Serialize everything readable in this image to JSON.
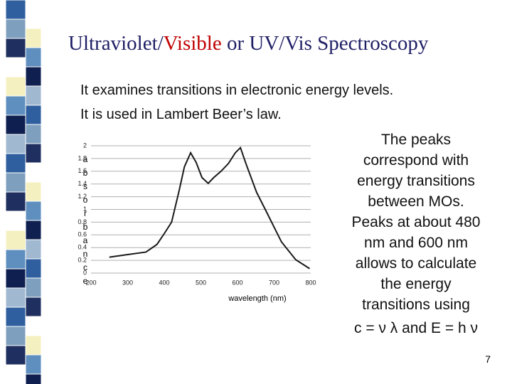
{
  "title_parts": [
    "Ultraviolet/",
    "Visible",
    " or UV/Vis Spectroscopy"
  ],
  "bullets": [
    "It examines transitions in electronic energy levels.",
    "It is used in Lambert Beer’s law."
  ],
  "side_text": [
    "The peaks",
    "correspond with",
    "energy transitions",
    "between MOs.",
    "Peaks at about 480",
    "nm and 600 nm",
    "allows to calculate",
    "the energy",
    "transitions using",
    "c = ν λ  and  E = h ν"
  ],
  "page_number": "7",
  "chart_data": {
    "type": "line",
    "x_label": "wavelength (nm)",
    "y_label": "absorbance",
    "x": [
      250,
      300,
      350,
      380,
      400,
      420,
      440,
      455,
      472,
      487,
      503,
      520,
      535,
      555,
      575,
      594,
      608,
      623,
      652,
      681,
      720,
      759,
      797
    ],
    "values": [
      0.25,
      0.29,
      0.33,
      0.45,
      0.62,
      0.8,
      1.28,
      1.67,
      1.89,
      1.74,
      1.5,
      1.41,
      1.5,
      1.6,
      1.72,
      1.89,
      1.97,
      1.72,
      1.27,
      0.94,
      0.49,
      0.21,
      0.07
    ],
    "color": "#1a1a1a",
    "xlim": [
      200,
      800
    ],
    "xticks": [
      200,
      300,
      400,
      500,
      600,
      700,
      800
    ],
    "ylim": [
      0,
      2
    ],
    "yticks": [
      0,
      0.2,
      0.4,
      0.6,
      0.8,
      1,
      1.2,
      1.4,
      1.6,
      1.8,
      2
    ],
    "grid": true
  }
}
